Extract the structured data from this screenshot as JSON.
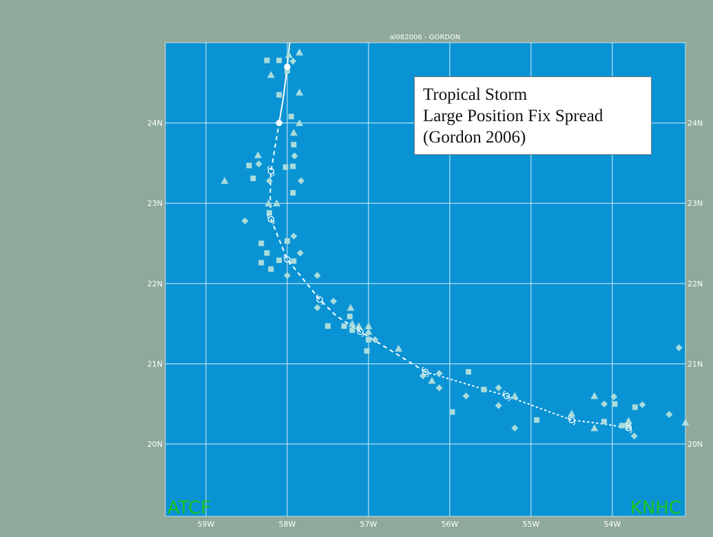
{
  "chart_data": {
    "type": "scatter",
    "title": "al082006 - GORDON",
    "annotation": [
      "Tropical Storm",
      "Large Position Fix Spread",
      "(Gordon 2006)"
    ],
    "corner_left": "ATCF",
    "corner_right": "KNHC",
    "xlim": [
      -59.5,
      -53.1
    ],
    "ylim": [
      19.1,
      25.0
    ],
    "xticks": [
      {
        "value": -59,
        "label": "59W"
      },
      {
        "value": -58,
        "label": "58W"
      },
      {
        "value": -57,
        "label": "57W"
      },
      {
        "value": -56,
        "label": "56W"
      },
      {
        "value": -55,
        "label": "55W"
      },
      {
        "value": -54,
        "label": "54W"
      }
    ],
    "yticks": [
      {
        "value": 20,
        "label": "20N"
      },
      {
        "value": 21,
        "label": "21N"
      },
      {
        "value": 22,
        "label": "22N"
      },
      {
        "value": 23,
        "label": "23N"
      },
      {
        "value": 24,
        "label": "24N"
      }
    ],
    "grid": true,
    "colors": {
      "plot_bg": "#0a93d4",
      "frame_bg": "#8fa99b",
      "grid": "#ffffff",
      "fixes": "#a9dcdc",
      "track": "#ffffff",
      "corner_text": "#1fc21f"
    },
    "best_track": [
      {
        "x": -53.8,
        "y": 20.2
      },
      {
        "x": -54.1,
        "y": 20.25
      },
      {
        "x": -54.5,
        "y": 20.3
      },
      {
        "x": -54.9,
        "y": 20.45
      },
      {
        "x": -55.3,
        "y": 20.6
      },
      {
        "x": -55.8,
        "y": 20.75
      },
      {
        "x": -56.3,
        "y": 20.9
      },
      {
        "x": -56.7,
        "y": 21.15
      },
      {
        "x": -57.1,
        "y": 21.4
      },
      {
        "x": -57.4,
        "y": 21.6
      },
      {
        "x": -57.6,
        "y": 21.8
      },
      {
        "x": -57.8,
        "y": 22.05
      },
      {
        "x": -58.0,
        "y": 22.3
      },
      {
        "x": -58.1,
        "y": 22.55
      },
      {
        "x": -58.2,
        "y": 22.8
      },
      {
        "x": -58.21,
        "y": 23.1
      },
      {
        "x": -58.2,
        "y": 23.4
      },
      {
        "x": -58.15,
        "y": 23.7
      },
      {
        "x": -58.1,
        "y": 24.0
      },
      {
        "x": -58.05,
        "y": 24.3
      },
      {
        "x": -58.0,
        "y": 24.7
      },
      {
        "x": -57.97,
        "y": 25.0
      }
    ],
    "track_marks": [
      {
        "x": -53.8,
        "y": 20.2
      },
      {
        "x": -54.5,
        "y": 20.3
      },
      {
        "x": -55.3,
        "y": 20.6
      },
      {
        "x": -56.3,
        "y": 20.9
      },
      {
        "x": -57.1,
        "y": 21.4
      },
      {
        "x": -57.6,
        "y": 21.8
      },
      {
        "x": -58.0,
        "y": 22.3
      },
      {
        "x": -58.2,
        "y": 22.8
      },
      {
        "x": -58.2,
        "y": 23.4
      },
      {
        "x": -58.1,
        "y": 24.0
      },
      {
        "x": -58.0,
        "y": 24.7
      }
    ],
    "fixes": [
      {
        "x": -58.25,
        "y": 24.78,
        "m": "square"
      },
      {
        "x": -58.1,
        "y": 24.78,
        "m": "square"
      },
      {
        "x": -57.98,
        "y": 24.85,
        "m": "triangle"
      },
      {
        "x": -57.93,
        "y": 24.77,
        "m": "diamond"
      },
      {
        "x": -57.85,
        "y": 24.88,
        "m": "triangle"
      },
      {
        "x": -58.0,
        "y": 24.65,
        "m": "square"
      },
      {
        "x": -58.2,
        "y": 24.6,
        "m": "triangle"
      },
      {
        "x": -58.1,
        "y": 24.35,
        "m": "square"
      },
      {
        "x": -57.85,
        "y": 24.38,
        "m": "triangle"
      },
      {
        "x": -57.95,
        "y": 24.08,
        "m": "square"
      },
      {
        "x": -57.85,
        "y": 24.0,
        "m": "triangle"
      },
      {
        "x": -57.92,
        "y": 23.88,
        "m": "triangle"
      },
      {
        "x": -57.92,
        "y": 23.73,
        "m": "square"
      },
      {
        "x": -58.36,
        "y": 23.6,
        "m": "triangle"
      },
      {
        "x": -57.91,
        "y": 23.59,
        "m": "diamond"
      },
      {
        "x": -58.47,
        "y": 23.47,
        "m": "square"
      },
      {
        "x": -58.35,
        "y": 23.49,
        "m": "diamond"
      },
      {
        "x": -58.02,
        "y": 23.45,
        "m": "square"
      },
      {
        "x": -57.93,
        "y": 23.46,
        "m": "square"
      },
      {
        "x": -58.42,
        "y": 23.31,
        "m": "square"
      },
      {
        "x": -58.22,
        "y": 23.28,
        "m": "diamond"
      },
      {
        "x": -58.77,
        "y": 23.28,
        "m": "triangle"
      },
      {
        "x": -57.83,
        "y": 23.28,
        "m": "diamond"
      },
      {
        "x": -57.93,
        "y": 23.13,
        "m": "square"
      },
      {
        "x": -58.23,
        "y": 23.0,
        "m": "triangle"
      },
      {
        "x": -58.13,
        "y": 23.0,
        "m": "triangle"
      },
      {
        "x": -58.22,
        "y": 22.88,
        "m": "square"
      },
      {
        "x": -58.52,
        "y": 22.78,
        "m": "diamond"
      },
      {
        "x": -57.92,
        "y": 22.59,
        "m": "diamond"
      },
      {
        "x": -58.0,
        "y": 22.53,
        "m": "square"
      },
      {
        "x": -58.32,
        "y": 22.5,
        "m": "square"
      },
      {
        "x": -58.25,
        "y": 22.38,
        "m": "square"
      },
      {
        "x": -57.84,
        "y": 22.38,
        "m": "diamond"
      },
      {
        "x": -58.32,
        "y": 22.26,
        "m": "square"
      },
      {
        "x": -58.1,
        "y": 22.29,
        "m": "square"
      },
      {
        "x": -57.92,
        "y": 22.28,
        "m": "square"
      },
      {
        "x": -58.2,
        "y": 22.18,
        "m": "square"
      },
      {
        "x": -58.0,
        "y": 22.1,
        "m": "diamond"
      },
      {
        "x": -57.63,
        "y": 22.1,
        "m": "diamond"
      },
      {
        "x": -57.43,
        "y": 21.78,
        "m": "diamond"
      },
      {
        "x": -57.63,
        "y": 21.7,
        "m": "diamond"
      },
      {
        "x": -57.22,
        "y": 21.7,
        "m": "triangle"
      },
      {
        "x": -57.23,
        "y": 21.59,
        "m": "square"
      },
      {
        "x": -57.2,
        "y": 21.5,
        "m": "triangle"
      },
      {
        "x": -57.12,
        "y": 21.47,
        "m": "triangle"
      },
      {
        "x": -57.0,
        "y": 21.47,
        "m": "triangle"
      },
      {
        "x": -57.5,
        "y": 21.47,
        "m": "square"
      },
      {
        "x": -57.3,
        "y": 21.47,
        "m": "square"
      },
      {
        "x": -57.2,
        "y": 21.42,
        "m": "square"
      },
      {
        "x": -57.0,
        "y": 21.4,
        "m": "triangle"
      },
      {
        "x": -57.0,
        "y": 21.3,
        "m": "square"
      },
      {
        "x": -56.92,
        "y": 21.3,
        "m": "diamond"
      },
      {
        "x": -56.63,
        "y": 21.19,
        "m": "triangle"
      },
      {
        "x": -57.02,
        "y": 21.16,
        "m": "square"
      },
      {
        "x": -55.77,
        "y": 20.9,
        "m": "square"
      },
      {
        "x": -56.13,
        "y": 20.88,
        "m": "diamond"
      },
      {
        "x": -56.33,
        "y": 20.85,
        "m": "diamond"
      },
      {
        "x": -56.22,
        "y": 20.79,
        "m": "triangle"
      },
      {
        "x": -55.4,
        "y": 20.7,
        "m": "diamond"
      },
      {
        "x": -56.13,
        "y": 20.7,
        "m": "diamond"
      },
      {
        "x": -55.58,
        "y": 20.68,
        "m": "square"
      },
      {
        "x": -55.2,
        "y": 20.6,
        "m": "triangle"
      },
      {
        "x": -55.8,
        "y": 20.6,
        "m": "diamond"
      },
      {
        "x": -54.22,
        "y": 20.6,
        "m": "triangle"
      },
      {
        "x": -53.98,
        "y": 20.59,
        "m": "diamond"
      },
      {
        "x": -54.1,
        "y": 20.5,
        "m": "diamond"
      },
      {
        "x": -53.97,
        "y": 20.5,
        "m": "square"
      },
      {
        "x": -53.63,
        "y": 20.49,
        "m": "diamond"
      },
      {
        "x": -53.72,
        "y": 20.46,
        "m": "square"
      },
      {
        "x": -55.4,
        "y": 20.48,
        "m": "diamond"
      },
      {
        "x": -55.97,
        "y": 20.4,
        "m": "square"
      },
      {
        "x": -54.5,
        "y": 20.38,
        "m": "triangle"
      },
      {
        "x": -53.3,
        "y": 20.37,
        "m": "diamond"
      },
      {
        "x": -53.18,
        "y": 21.2,
        "m": "diamond"
      },
      {
        "x": -54.93,
        "y": 20.3,
        "m": "square"
      },
      {
        "x": -54.1,
        "y": 20.28,
        "m": "square"
      },
      {
        "x": -53.8,
        "y": 20.29,
        "m": "triangle"
      },
      {
        "x": -53.1,
        "y": 20.27,
        "m": "triangle"
      },
      {
        "x": -53.88,
        "y": 20.23,
        "m": "square"
      },
      {
        "x": -53.8,
        "y": 20.22,
        "m": "square"
      },
      {
        "x": -54.22,
        "y": 20.2,
        "m": "triangle"
      },
      {
        "x": -55.2,
        "y": 20.2,
        "m": "diamond"
      },
      {
        "x": -53.73,
        "y": 20.1,
        "m": "diamond"
      }
    ]
  }
}
